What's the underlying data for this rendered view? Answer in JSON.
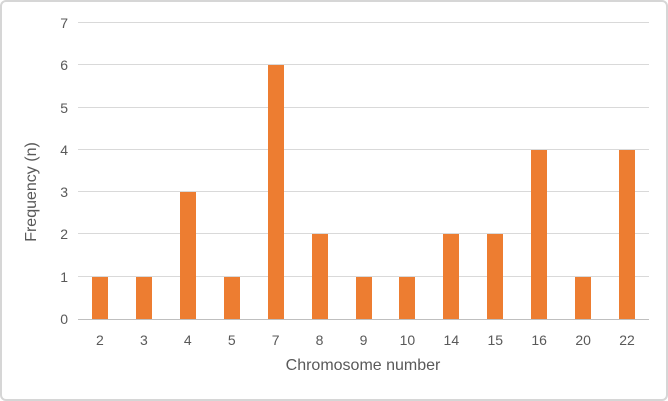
{
  "chart_data": {
    "type": "bar",
    "title": "",
    "xlabel": "Chromosome number",
    "ylabel": "Frequency (n)",
    "categories": [
      "2",
      "3",
      "4",
      "5",
      "7",
      "8",
      "9",
      "10",
      "14",
      "15",
      "16",
      "20",
      "22"
    ],
    "values": [
      1,
      1,
      3,
      1,
      6,
      2,
      1,
      1,
      2,
      2,
      4,
      1,
      4
    ],
    "ylim": [
      0,
      7
    ],
    "ytick_labels": [
      "0",
      "1",
      "2",
      "3",
      "4",
      "5",
      "6",
      "7"
    ],
    "grid": true,
    "legend": false,
    "colors": {
      "bar": "#ED7D31",
      "gridline": "#D9D9D9",
      "axis_line": "#BFBFBF",
      "text": "#595959"
    }
  }
}
